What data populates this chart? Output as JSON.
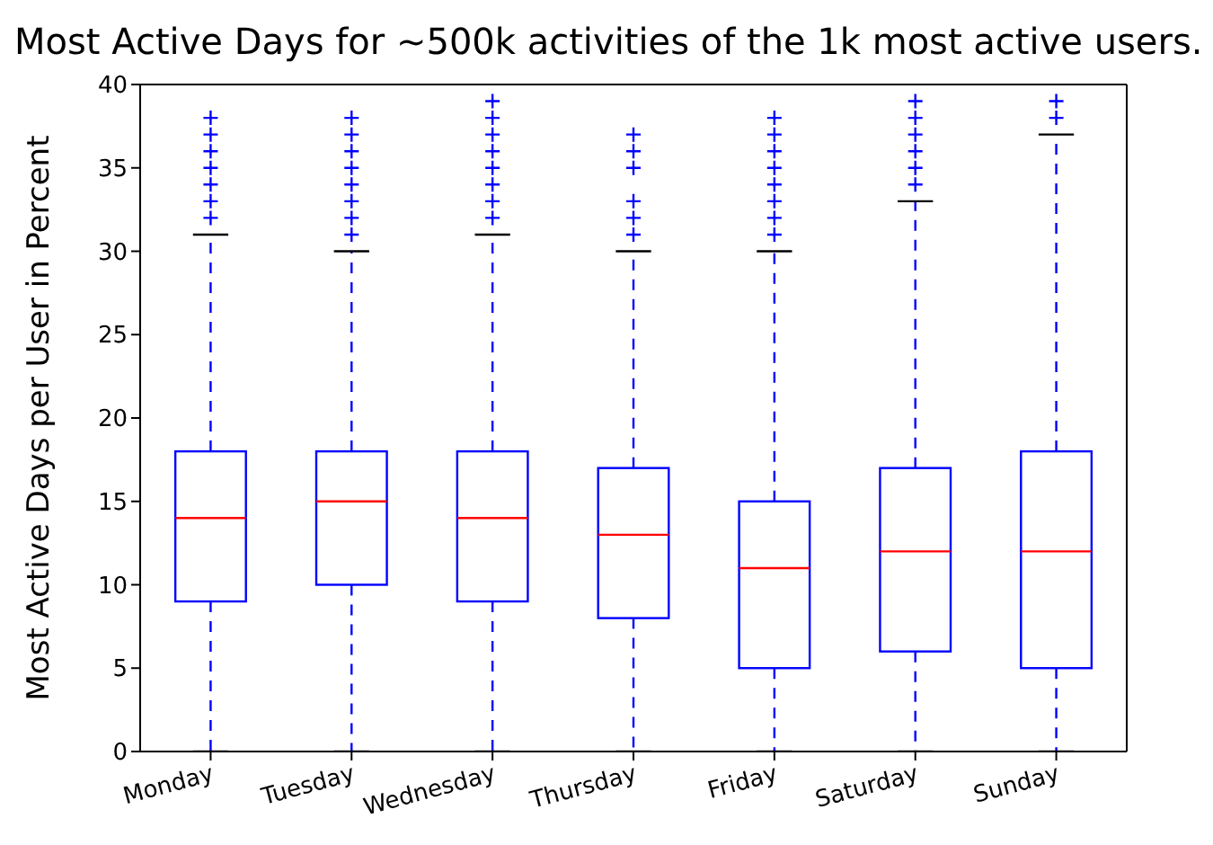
{
  "chart_data": {
    "type": "box",
    "title": "Most Active Days for ~500k activities of the 1k most active users.",
    "ylabel": "Most Active Days per User in Percent",
    "categories": [
      "Monday",
      "Tuesday",
      "Wednesday",
      "Thursday",
      "Friday",
      "Saturday",
      "Sunday"
    ],
    "ylim": [
      0,
      40
    ],
    "yticks": [
      0,
      5,
      10,
      15,
      20,
      25,
      30,
      35,
      40
    ],
    "grid": false,
    "series": [
      {
        "color": "#0000ff",
        "boxes": [
          {
            "low": 0,
            "q1": 9,
            "median": 14,
            "q3": 18,
            "high": 31,
            "outliers": [
              32,
              33,
              34,
              35,
              36,
              37,
              38
            ]
          },
          {
            "low": 0,
            "q1": 10,
            "median": 15,
            "q3": 18,
            "high": 30,
            "outliers": [
              31,
              32,
              33,
              34,
              35,
              36,
              37,
              38
            ]
          },
          {
            "low": 0,
            "q1": 9,
            "median": 14,
            "q3": 18,
            "high": 31,
            "outliers": [
              32,
              33,
              34,
              35,
              36,
              37,
              38,
              39
            ]
          },
          {
            "low": 0,
            "q1": 8,
            "median": 13,
            "q3": 17,
            "high": 30,
            "outliers": [
              31,
              32,
              33,
              35,
              36,
              37
            ]
          },
          {
            "low": 0,
            "q1": 5,
            "median": 11,
            "q3": 15,
            "high": 30,
            "outliers": [
              31,
              32,
              33,
              34,
              35,
              36,
              37,
              38
            ]
          },
          {
            "low": 0,
            "q1": 6,
            "median": 12,
            "q3": 17,
            "high": 33,
            "outliers": [
              34,
              35,
              36,
              37,
              38,
              39
            ]
          },
          {
            "low": 0,
            "q1": 5,
            "median": 12,
            "q3": 18,
            "high": 37,
            "outliers": [
              38,
              39
            ]
          }
        ]
      }
    ]
  }
}
